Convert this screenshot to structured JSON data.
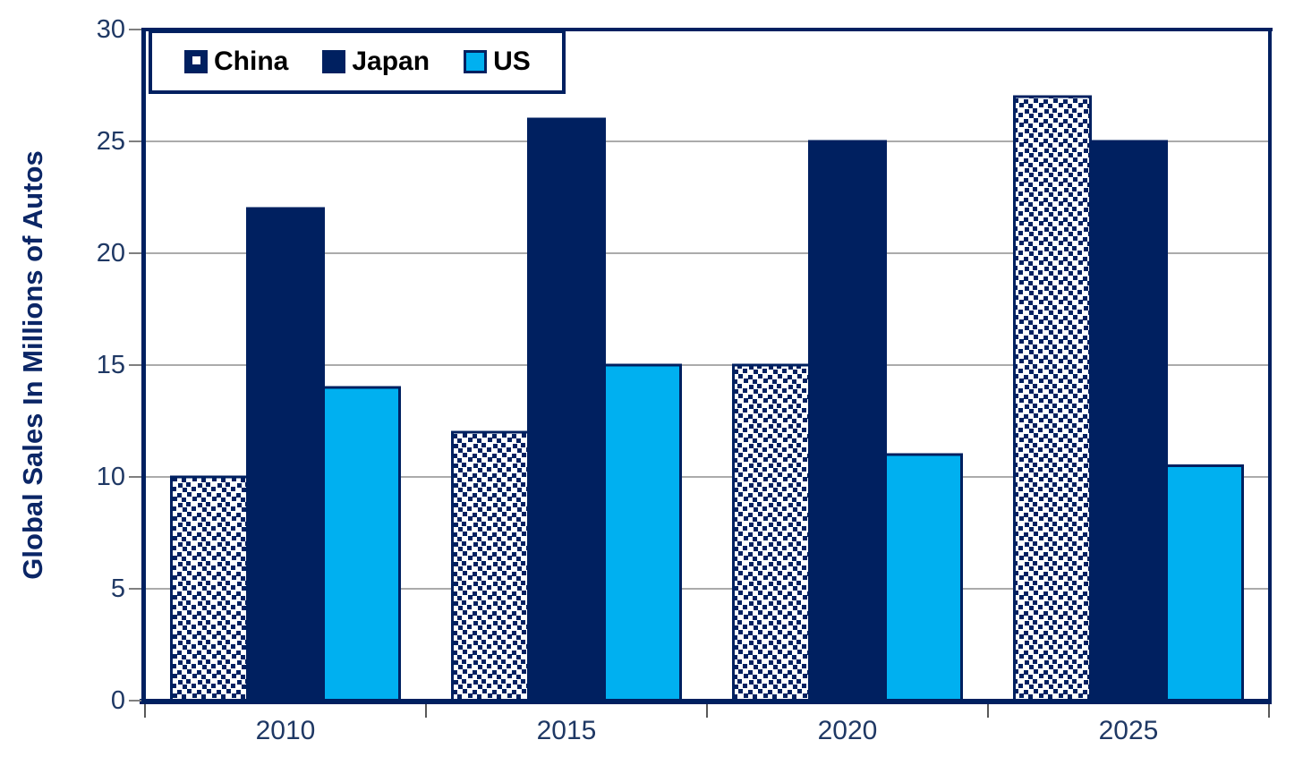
{
  "chart_data": {
    "type": "bar",
    "title": "",
    "ylabel": "Global Sales In Millions of Autos",
    "xlabel": "",
    "categories": [
      "2010",
      "2015",
      "2020",
      "2025"
    ],
    "series": [
      {
        "name": "China",
        "fill": "pattern-dots",
        "color": "#002060",
        "values": [
          10,
          12,
          15,
          27
        ]
      },
      {
        "name": "Japan",
        "fill": "solid",
        "color": "#002060",
        "values": [
          22,
          26,
          25,
          25
        ]
      },
      {
        "name": "US",
        "fill": "solid",
        "color": "#00B0F0",
        "values": [
          14,
          15,
          11,
          10.5
        ]
      }
    ],
    "ylim": [
      0,
      30
    ],
    "yticks": [
      0,
      5,
      10,
      15,
      20,
      25,
      30
    ],
    "grid": "horizontal",
    "legend_position": "top-left-inside",
    "colors": {
      "navy": "#002060",
      "cyan": "#00B0F0",
      "gridline": "#ABABAB",
      "tick_label": "#1F3864",
      "legend_text": "#000000",
      "background": "#FFFFFF"
    }
  }
}
